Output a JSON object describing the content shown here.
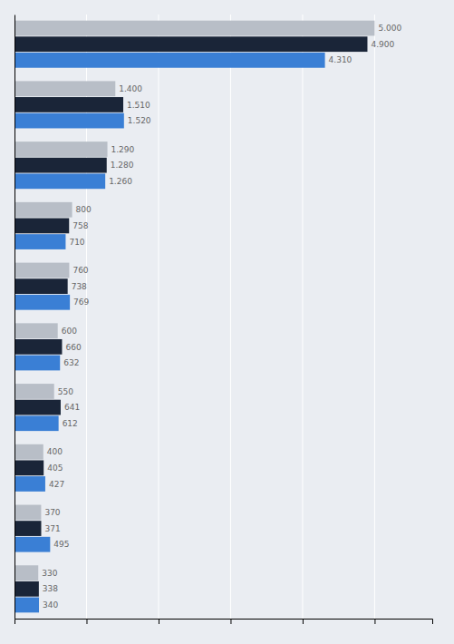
{
  "chart_data": {
    "type": "bar",
    "orientation": "horizontal",
    "categories": [
      null,
      null,
      null,
      null,
      null,
      null,
      null,
      null,
      null,
      null
    ],
    "series": [
      {
        "color": "#b8bec7",
        "values": [
          5000,
          1400,
          1290,
          800,
          760,
          600,
          550,
          400,
          370,
          330
        ],
        "value_labels": [
          "5.000",
          "1.400",
          "1.290",
          "800",
          "760",
          "600",
          "550",
          "400",
          "370",
          "330"
        ]
      },
      {
        "color": "#1a2538",
        "values": [
          4900,
          1510,
          1280,
          758,
          738,
          660,
          641,
          405,
          371,
          338
        ],
        "value_labels": [
          "4.900",
          "1.510",
          "1.280",
          "758",
          "738",
          "660",
          "641",
          "405",
          "371",
          "338"
        ]
      },
      {
        "color": "#3a7fd5",
        "values": [
          4310,
          1520,
          1260,
          710,
          769,
          632,
          612,
          427,
          495,
          340
        ],
        "value_labels": [
          "4.310",
          "1.520",
          "1.260",
          "710",
          "769",
          "632",
          "612",
          "427",
          "495",
          "340"
        ]
      }
    ],
    "xlim": [
      0,
      5800
    ],
    "xticks": [
      1000,
      2000,
      3000,
      4000,
      5000
    ],
    "grid": true,
    "tick_labels": false,
    "data_labels": true
  }
}
